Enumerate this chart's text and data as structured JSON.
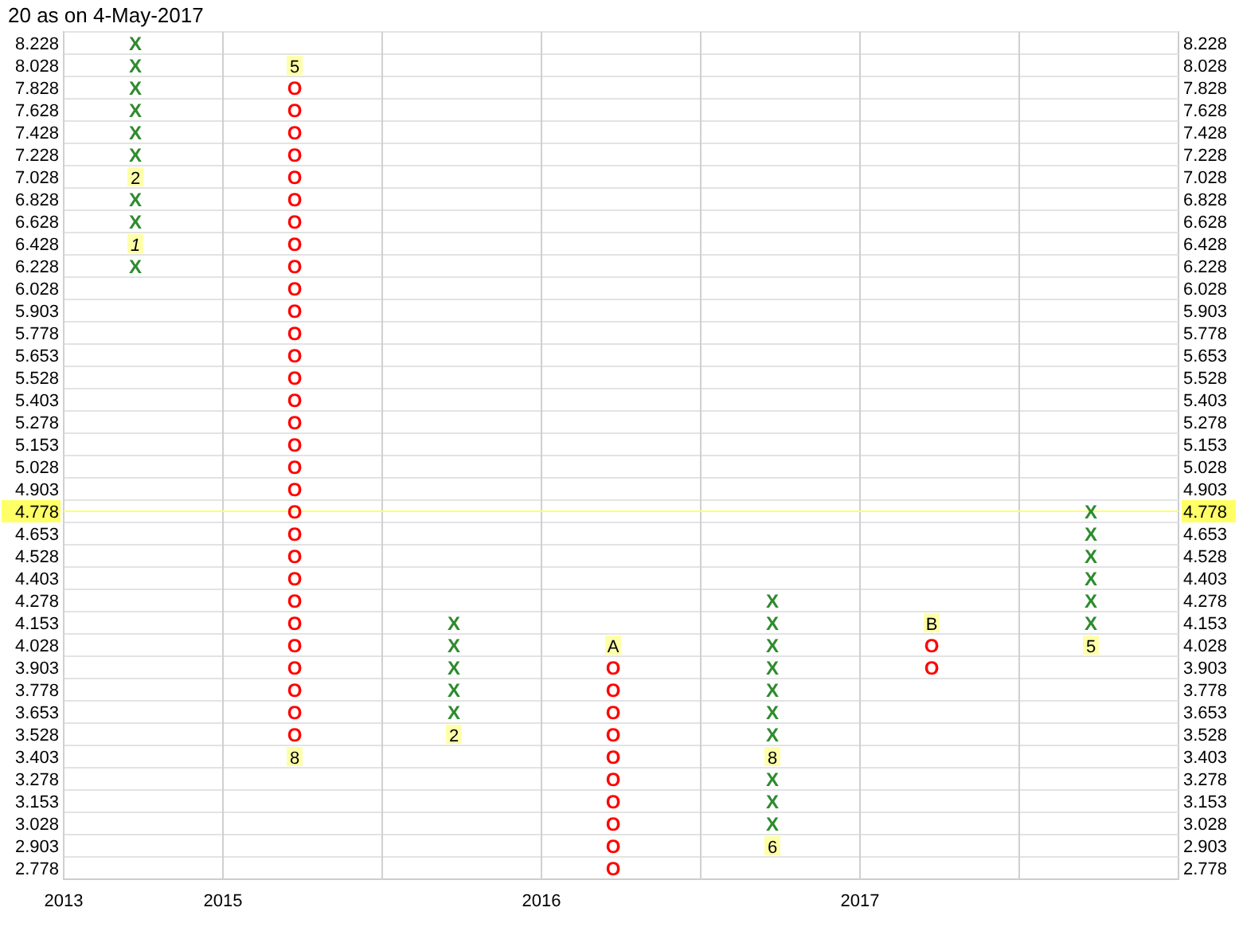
{
  "chart_data": {
    "type": "heatmap",
    "title": "20 as on 4-May-2017",
    "categories": [
      "2013",
      "2015",
      null,
      "2016",
      null,
      "2017",
      null
    ],
    "colors": [
      "#2e8b2e",
      "#ff0000",
      "#2e8b2e",
      "#ff0000",
      "#2e8b2e",
      "#ff0000",
      "#2e8b2e"
    ],
    "y_categories": [
      "8.228",
      "8.028",
      "7.828",
      "7.628",
      "7.428",
      "7.228",
      "7.028",
      "6.828",
      "6.628",
      "6.428",
      "6.228",
      "6.028",
      "5.903",
      "5.778",
      "5.653",
      "5.528",
      "5.403",
      "5.278",
      "5.153",
      "5.028",
      "4.903",
      "4.778",
      "4.653",
      "4.528",
      "4.403",
      "4.278",
      "4.153",
      "4.028",
      "3.903",
      "3.778",
      "3.653",
      "3.528",
      "3.403",
      "3.278",
      "3.153",
      "3.028",
      "2.903",
      "2.778"
    ],
    "y2_categories": [
      "8.228",
      "8.028",
      "7.828",
      "7.628",
      "7.428",
      "7.228",
      "7.028",
      "6.828",
      "6.628",
      "6.428",
      "6.228",
      "6.028",
      "5.903",
      "5.778",
      "5.653",
      "5.528",
      "5.403",
      "5.278",
      "5.153",
      "5.028",
      "4.903",
      "4.778",
      "4.653",
      "4.528",
      "4.403",
      "4.278",
      "4.153",
      "4.028",
      "3.903",
      "3.778",
      "3.653",
      "3.528",
      "3.403",
      "3.278",
      "3.153",
      "3.028",
      "2.903",
      "2.778"
    ],
    "ref_lines": [
      {
        "axis": "y",
        "value": "4.778",
        "color": "#ffff66"
      }
    ],
    "grid": true,
    "cells": [
      [
        null,
        null,
        null,
        null,
        null,
        null,
        null
      ],
      [
        null,
        5,
        null,
        null,
        null,
        null,
        null
      ],
      [
        null,
        null,
        null,
        null,
        null,
        null,
        null
      ],
      [
        null,
        null,
        null,
        null,
        null,
        null,
        null
      ],
      [
        null,
        null,
        null,
        null,
        null,
        null,
        null
      ],
      [
        null,
        null,
        null,
        null,
        null,
        null,
        null
      ],
      [
        2,
        null,
        null,
        null,
        null,
        null,
        null
      ],
      [
        null,
        null,
        null,
        null,
        null,
        null,
        null
      ],
      [
        null,
        null,
        null,
        null,
        null,
        null,
        null
      ],
      [
        1,
        null,
        null,
        null,
        null,
        null,
        null
      ],
      [
        null,
        null,
        null,
        null,
        null,
        null,
        null
      ],
      [
        null,
        null,
        null,
        null,
        null,
        null,
        null
      ],
      [
        null,
        null,
        null,
        null,
        null,
        null,
        null
      ],
      [
        null,
        null,
        null,
        null,
        null,
        null,
        null
      ],
      [
        null,
        null,
        null,
        null,
        null,
        null,
        null
      ],
      [
        null,
        null,
        null,
        null,
        null,
        null,
        null
      ],
      [
        null,
        null,
        null,
        null,
        null,
        null,
        null
      ],
      [
        null,
        null,
        null,
        null,
        null,
        null,
        null
      ],
      [
        null,
        null,
        null,
        null,
        null,
        null,
        null
      ],
      [
        null,
        null,
        null,
        null,
        null,
        null,
        null
      ],
      [
        null,
        null,
        null,
        null,
        null,
        null,
        null
      ],
      [
        null,
        null,
        null,
        null,
        null,
        null,
        null
      ],
      [
        null,
        null,
        null,
        null,
        null,
        null,
        null
      ],
      [
        null,
        null,
        null,
        null,
        null,
        null,
        null
      ],
      [
        null,
        null,
        null,
        null,
        null,
        null,
        null
      ],
      [
        null,
        null,
        null,
        null,
        null,
        null,
        null
      ],
      [
        null,
        null,
        null,
        null,
        null,
        null,
        null
      ],
      [
        null,
        null,
        null,
        null,
        null,
        null,
        5
      ],
      [
        null,
        null,
        null,
        null,
        null,
        null,
        null
      ],
      [
        null,
        null,
        null,
        null,
        null,
        null,
        null
      ],
      [
        null,
        null,
        null,
        null,
        null,
        null,
        null
      ],
      [
        null,
        null,
        2,
        null,
        null,
        null,
        null
      ],
      [
        null,
        8,
        null,
        null,
        8,
        null,
        null
      ],
      [
        null,
        null,
        null,
        null,
        null,
        null,
        null
      ],
      [
        null,
        null,
        null,
        null,
        null,
        null,
        null
      ],
      [
        null,
        null,
        null,
        null,
        null,
        null,
        null
      ],
      [
        null,
        null,
        null,
        null,
        6,
        null,
        null
      ],
      [
        null,
        null,
        null,
        null,
        null,
        null,
        null
      ]
    ],
    "cell_labels": [
      [
        "X",
        null,
        null,
        null,
        null,
        null,
        null
      ],
      [
        "X",
        "5",
        null,
        null,
        null,
        null,
        null
      ],
      [
        "X",
        "O",
        null,
        null,
        null,
        null,
        null
      ],
      [
        "X",
        "O",
        null,
        null,
        null,
        null,
        null
      ],
      [
        "X",
        "O",
        null,
        null,
        null,
        null,
        null
      ],
      [
        "X",
        "O",
        null,
        null,
        null,
        null,
        null
      ],
      [
        "2",
        "O",
        null,
        null,
        null,
        null,
        null
      ],
      [
        "X",
        "O",
        null,
        null,
        null,
        null,
        null
      ],
      [
        "X",
        "O",
        null,
        null,
        null,
        null,
        null
      ],
      [
        "1",
        "O",
        null,
        null,
        null,
        null,
        null
      ],
      [
        "X",
        "O",
        null,
        null,
        null,
        null,
        null
      ],
      [
        null,
        "O",
        null,
        null,
        null,
        null,
        null
      ],
      [
        null,
        "O",
        null,
        null,
        null,
        null,
        null
      ],
      [
        null,
        "O",
        null,
        null,
        null,
        null,
        null
      ],
      [
        null,
        "O",
        null,
        null,
        null,
        null,
        null
      ],
      [
        null,
        "O",
        null,
        null,
        null,
        null,
        null
      ],
      [
        null,
        "O",
        null,
        null,
        null,
        null,
        null
      ],
      [
        null,
        "O",
        null,
        null,
        null,
        null,
        null
      ],
      [
        null,
        "O",
        null,
        null,
        null,
        null,
        null
      ],
      [
        null,
        "O",
        null,
        null,
        null,
        null,
        null
      ],
      [
        null,
        "O",
        null,
        null,
        null,
        null,
        null
      ],
      [
        null,
        "O",
        null,
        null,
        null,
        null,
        "X"
      ],
      [
        null,
        "O",
        null,
        null,
        null,
        null,
        "X"
      ],
      [
        null,
        "O",
        null,
        null,
        null,
        null,
        "X"
      ],
      [
        null,
        "O",
        null,
        null,
        null,
        null,
        "X"
      ],
      [
        null,
        "O",
        null,
        null,
        "X",
        null,
        "X"
      ],
      [
        null,
        "O",
        "X",
        null,
        "X",
        "B",
        "X"
      ],
      [
        null,
        "O",
        "X",
        "A",
        "X",
        "O",
        "5"
      ],
      [
        null,
        "O",
        "X",
        "O",
        "X",
        "O",
        null
      ],
      [
        null,
        "O",
        "X",
        "O",
        "X",
        null,
        null
      ],
      [
        null,
        "O",
        "X",
        "O",
        "X",
        null,
        null
      ],
      [
        null,
        "O",
        "2",
        "O",
        "X",
        null,
        null
      ],
      [
        null,
        "8",
        null,
        "O",
        "8",
        null,
        null
      ],
      [
        null,
        null,
        null,
        "O",
        "X",
        null,
        null
      ],
      [
        null,
        null,
        null,
        "O",
        "X",
        null,
        null
      ],
      [
        null,
        null,
        null,
        "O",
        "X",
        null,
        null
      ],
      [
        null,
        null,
        null,
        "O",
        "6",
        null,
        null
      ],
      [
        null,
        null,
        null,
        "O",
        null,
        null,
        null
      ]
    ]
  }
}
